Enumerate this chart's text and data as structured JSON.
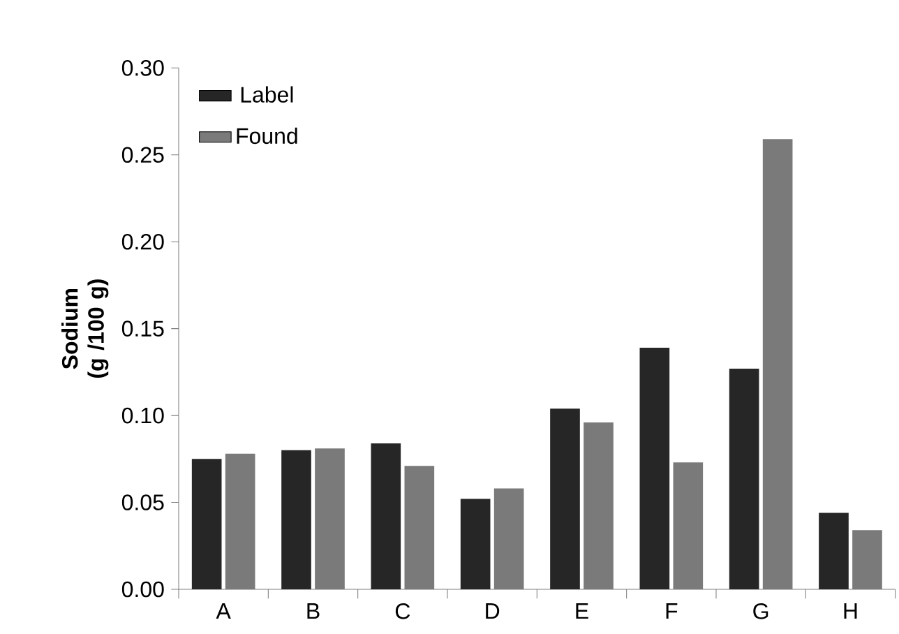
{
  "chart_data": {
    "type": "bar",
    "ylabel": "Sodium (g /100 g)",
    "categories": [
      "A",
      "B",
      "C",
      "D",
      "E",
      "F",
      "G",
      "H"
    ],
    "series": [
      {
        "name": "Label",
        "color": "#262626",
        "values": [
          0.075,
          0.08,
          0.084,
          0.052,
          0.104,
          0.139,
          0.127,
          0.044
        ]
      },
      {
        "name": "Found",
        "color": "#7a7a7a",
        "values": [
          0.078,
          0.081,
          0.071,
          0.058,
          0.096,
          0.073,
          0.259,
          0.034
        ]
      }
    ],
    "ylim": [
      0,
      0.3
    ],
    "yticks": [
      {
        "value": 0,
        "label": "0.00"
      },
      {
        "value": 0.05,
        "label": "0.05"
      },
      {
        "value": 0.1,
        "label": "0.10"
      },
      {
        "value": 0.15,
        "label": "0.15"
      },
      {
        "value": 0.2,
        "label": "0.20"
      },
      {
        "value": 0.25,
        "label": "0.25"
      },
      {
        "value": 0.3,
        "label": "0.30"
      }
    ],
    "grid": false,
    "legend": "top left"
  }
}
